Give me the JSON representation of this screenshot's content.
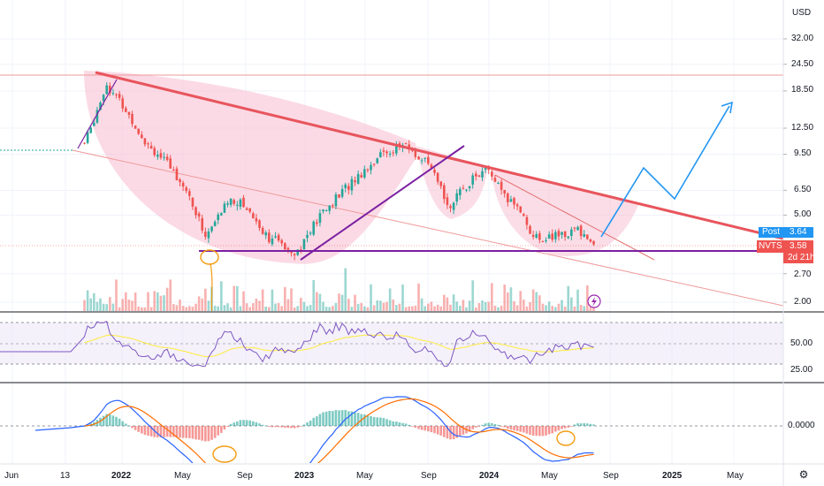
{
  "currency": "USD",
  "ticker_tag": {
    "label": "NVTS",
    "value": "3.58",
    "countdown": "2d 21h"
  },
  "post_tag": {
    "label": "Post",
    "value": "3.64"
  },
  "price_axis_ticks": [
    "32.00",
    "24.50",
    "18.50",
    "12.50",
    "9.50",
    "6.50",
    "5.00",
    "2.70",
    "2.00"
  ],
  "rsi_axis_ticks": [
    "50.00",
    "25.00"
  ],
  "macd_axis_ticks": [
    "0.0000"
  ],
  "time_ticks": [
    {
      "label": "Jun",
      "bold": false
    },
    {
      "label": "13",
      "bold": false
    },
    {
      "label": "2022",
      "bold": true
    },
    {
      "label": "May",
      "bold": false
    },
    {
      "label": "Sep",
      "bold": false
    },
    {
      "label": "2023",
      "bold": true
    },
    {
      "label": "May",
      "bold": false
    },
    {
      "label": "Sep",
      "bold": false
    },
    {
      "label": "2024",
      "bold": true
    },
    {
      "label": "May",
      "bold": false
    },
    {
      "label": "Sep",
      "bold": false
    },
    {
      "label": "2025",
      "bold": true
    },
    {
      "label": "May",
      "bold": false
    }
  ],
  "colors": {
    "up": "#26a69a",
    "down": "#ef5350",
    "resistance": "#e8555d",
    "support": "#7b1fa2",
    "cup": "#f8bbd0",
    "projection": "#2196f3",
    "rsi": "#7e57c2",
    "rsi_ma": "#ffeb3b",
    "macd": "#2962ff",
    "signal": "#ff6d00",
    "orange_circle": "#f39c12"
  },
  "chart_data": {
    "type": "candlestick",
    "price_scale": "log",
    "price_range": [
      1.85,
      38
    ],
    "key_levels": {
      "resistance_start": 23,
      "support": 3.35,
      "upper_line": 22
    },
    "price_path": [
      {
        "x": "2021-06-01",
        "y": 10.0
      },
      {
        "x": "2021-10-15",
        "y": 10.0
      },
      {
        "x": "2021-11-01",
        "y": 12.5
      },
      {
        "x": "2021-12-01",
        "y": 20.0
      },
      {
        "x": "2022-01-01",
        "y": 16.0
      },
      {
        "x": "2022-02-15",
        "y": 11.0
      },
      {
        "x": "2022-04-01",
        "y": 8.5
      },
      {
        "x": "2022-05-01",
        "y": 7.0
      },
      {
        "x": "2022-06-15",
        "y": 4.0
      },
      {
        "x": "2022-08-01",
        "y": 6.0
      },
      {
        "x": "2022-09-01",
        "y": 5.5
      },
      {
        "x": "2022-10-15",
        "y": 4.0
      },
      {
        "x": "2022-12-15",
        "y": 3.4
      },
      {
        "x": "2023-02-01",
        "y": 5.0
      },
      {
        "x": "2023-04-01",
        "y": 7.0
      },
      {
        "x": "2023-06-01",
        "y": 9.5
      },
      {
        "x": "2023-07-15",
        "y": 10.5
      },
      {
        "x": "2023-09-01",
        "y": 8.5
      },
      {
        "x": "2023-10-15",
        "y": 5.5
      },
      {
        "x": "2023-12-01",
        "y": 7.5
      },
      {
        "x": "2024-01-01",
        "y": 8.0
      },
      {
        "x": "2024-02-01",
        "y": 6.0
      },
      {
        "x": "2024-03-01",
        "y": 5.5
      },
      {
        "x": "2024-04-01",
        "y": 3.9
      },
      {
        "x": "2024-05-15",
        "y": 4.0
      },
      {
        "x": "2024-07-01",
        "y": 4.3
      },
      {
        "x": "2024-08-01",
        "y": 3.6
      }
    ],
    "projection": [
      {
        "x": "2024-08-01",
        "y": 3.6
      },
      {
        "x": "2024-10-15",
        "y": 8.5
      },
      {
        "x": "2025-01-01",
        "y": 6.0
      },
      {
        "x": "2025-05-01",
        "y": 15.5
      }
    ]
  }
}
